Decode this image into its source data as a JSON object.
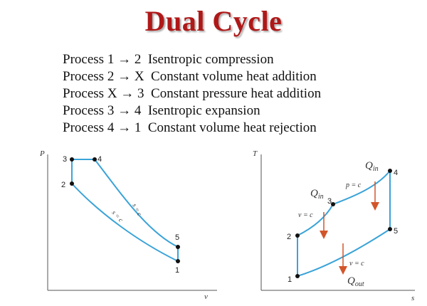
{
  "title": "Dual Cycle",
  "processes": [
    {
      "from": "1",
      "to": "2",
      "description": "Isentropic compression"
    },
    {
      "from": "2",
      "to": "X",
      "description": "Constant volume heat addition"
    },
    {
      "from": "X",
      "to": "3",
      "description": "Constant pressure heat addition"
    },
    {
      "from": "3",
      "to": "4",
      "description": "Isentropic expansion"
    },
    {
      "from": "4",
      "to": "1",
      "description": "Constant volume heat rejection"
    }
  ],
  "arrow_symbol": "→",
  "pv_diagram": {
    "y_axis_label": "P",
    "x_axis_label": "v",
    "state_labels": [
      "1",
      "2",
      "3",
      "4",
      "5"
    ],
    "process_labels": [
      "s = c",
      "s = c"
    ]
  },
  "ts_diagram": {
    "y_axis_label": "T",
    "x_axis_label": "s",
    "state_labels": [
      "1",
      "2",
      "3",
      "4",
      "5"
    ],
    "curve_labels": [
      "v = c",
      "p = c",
      "v = c"
    ],
    "heat_labels": {
      "q_in_1": {
        "base": "Q",
        "sub": "in"
      },
      "q_in_2": {
        "base": "Q",
        "sub": "in"
      },
      "q_out": {
        "base": "Q",
        "sub": "out"
      }
    }
  },
  "colors": {
    "title": "#b01818",
    "cycle_line": "#3aa3d8",
    "arrows": "#d2552a",
    "axes": "#555555"
  }
}
